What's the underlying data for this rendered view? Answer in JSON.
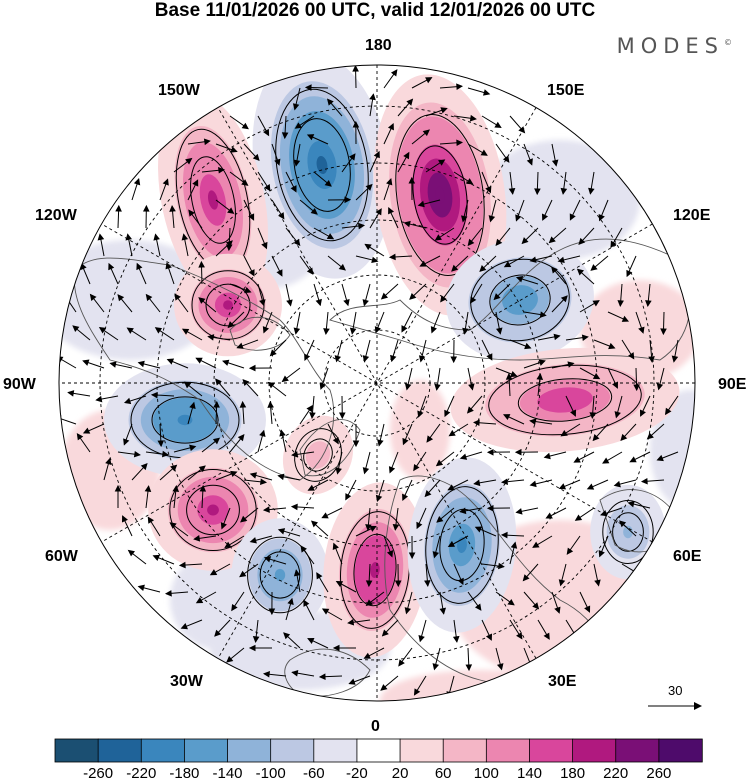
{
  "title": "Base 11/01/2026 00 UTC, valid 12/01/2026 00 UTC",
  "brand": "MODES",
  "brand_mark": "©",
  "longitude_labels": {
    "top": "180",
    "bottom": "0",
    "left": "90W",
    "right": "90E",
    "upper_left": "150W",
    "upper_right": "150E",
    "mid_upper_left": "120W",
    "mid_upper_right": "120E",
    "mid_lower_left": "60W",
    "mid_lower_right": "60E",
    "lower_left": "30W",
    "lower_right": "30E"
  },
  "reference_vector": "30",
  "colorbar": {
    "labels": [
      "-260",
      "-220",
      "-180",
      "-140",
      "-100",
      "-60",
      "-20",
      "20",
      "60",
      "100",
      "140",
      "180",
      "220",
      "260"
    ],
    "colors": [
      "#1b4f72",
      "#1f6399",
      "#3a86bd",
      "#5a9ccb",
      "#8fb3d9",
      "#bcc8e3",
      "#e3e3f0",
      "#ffffff",
      "#f9d9dc",
      "#f4b6c6",
      "#ec86b0",
      "#d9469c",
      "#b0197f",
      "#7a0f76",
      "#4e0b6b"
    ]
  },
  "anomalies": [
    {
      "name": "neg-pacific-north",
      "sign": -1,
      "value": -230
    },
    {
      "name": "pos-pacific-east",
      "sign": 1,
      "value": 250
    },
    {
      "name": "pos-alaska",
      "sign": 1,
      "value": 190
    },
    {
      "name": "pos-canada",
      "sign": 1,
      "value": 180
    },
    {
      "name": "neg-siberia",
      "sign": -1,
      "value": -170
    },
    {
      "name": "pos-central-asia",
      "sign": 1,
      "value": 170
    },
    {
      "name": "neg-north-america",
      "sign": -1,
      "value": -200
    },
    {
      "name": "pos-atlantic-west",
      "sign": 1,
      "value": 190
    },
    {
      "name": "neg-atlantic-central",
      "sign": -1,
      "value": -160
    },
    {
      "name": "pos-europe-west",
      "sign": 1,
      "value": 200
    },
    {
      "name": "neg-europe-east",
      "sign": -1,
      "value": -180
    },
    {
      "name": "neg-west-asia",
      "sign": -1,
      "value": -110
    },
    {
      "name": "pos-arctic-small",
      "sign": 1,
      "value": 90
    }
  ]
}
